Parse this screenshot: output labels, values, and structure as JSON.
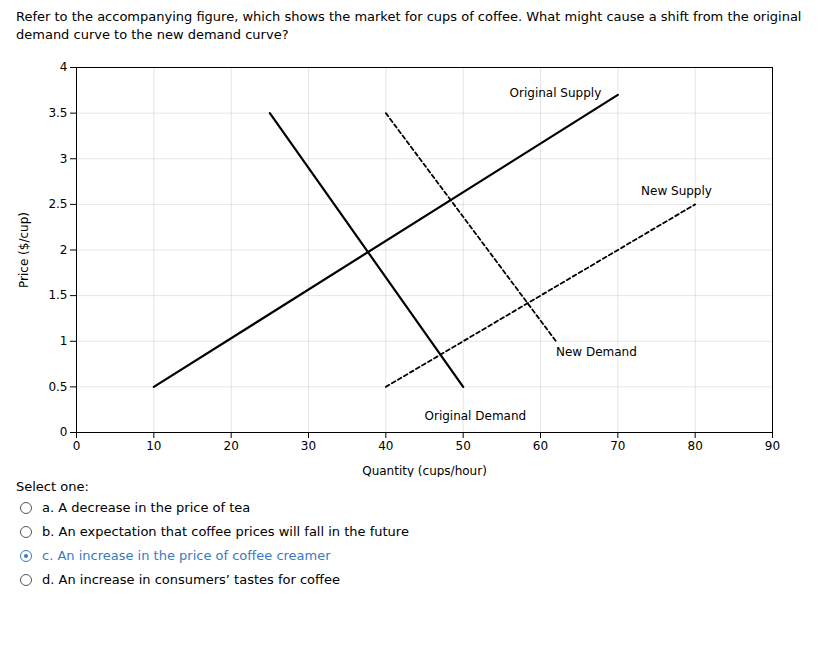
{
  "chart_data": {
    "type": "line",
    "title": "Refer to the accompanying figure, which shows the market for cups of coffee. What might cause a shift from the original demand curve to the new demand curve?",
    "xlabel": "Quantity (cups/hour)",
    "ylabel": "Price ($/cup)",
    "xlim": [
      0,
      90
    ],
    "ylim": [
      0,
      4
    ],
    "xticks": [
      0,
      10,
      20,
      30,
      40,
      50,
      60,
      70,
      80,
      90
    ],
    "yticks": [
      0,
      0.5,
      1,
      1.5,
      2,
      2.5,
      3,
      3.5,
      4
    ],
    "grid": true,
    "series": [
      {
        "name": "Original Supply",
        "x": [
          10,
          70
        ],
        "values": [
          0.5,
          3.7
        ],
        "color": "#000000",
        "line_style": "solid"
      },
      {
        "name": "New Supply",
        "x": [
          40,
          80
        ],
        "values": [
          0.5,
          2.5
        ],
        "color": "#000000",
        "line_style": "dashed"
      },
      {
        "name": "Original Demand",
        "x": [
          25,
          50
        ],
        "values": [
          3.5,
          0.5
        ],
        "color": "#000000",
        "line_style": "solid"
      },
      {
        "name": "New Demand",
        "x": [
          40,
          62
        ],
        "values": [
          3.5,
          1.0
        ],
        "color": "#000000",
        "line_style": "dashed"
      }
    ],
    "annotations": [
      {
        "text": "Original Supply",
        "x": 56,
        "y": 3.65
      },
      {
        "text": "New Supply",
        "x": 73,
        "y": 2.58
      },
      {
        "text": "Original Demand",
        "x": 45,
        "y": 0.12
      },
      {
        "text": "New Demand",
        "x": 62,
        "y": 0.82
      }
    ],
    "caption": "Select one:",
    "options": [
      {
        "label": "a. A decrease in the price of tea",
        "selected": false
      },
      {
        "label": "b. An expectation that coffee prices will fall in the future",
        "selected": false
      },
      {
        "label": "c. An increase in the price of coffee creamer",
        "selected": true,
        "color": "#3a7abf"
      },
      {
        "label": "d. An increase in consumers’ tastes for coffee",
        "selected": false
      }
    ]
  }
}
